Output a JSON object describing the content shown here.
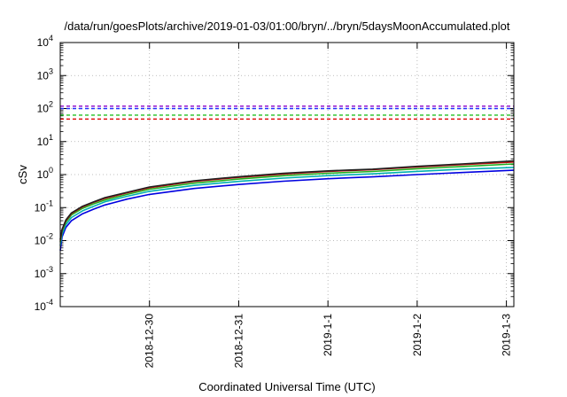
{
  "chart_data": {
    "type": "line",
    "title": "/data/run/goesPlots/archive/2019-01-03/01:00/bryn/../bryn/5daysMoonAccumulated.plot",
    "xlabel": "Coordinated Universal Time (UTC)",
    "ylabel": "cSv",
    "y_scale": "log",
    "ylim": [
      0.0001,
      10000
    ],
    "xlim": [
      "2018-12-29T00:00",
      "2019-01-03T02:00"
    ],
    "grid": true,
    "x_ticks": [
      {
        "value": "2018-12-30T00:00",
        "label": "2018-12-30"
      },
      {
        "value": "2018-12-31T00:00",
        "label": "2018-12-31"
      },
      {
        "value": "2019-01-01T00:00",
        "label": "2019-1-1"
      },
      {
        "value": "2019-01-02T00:00",
        "label": "2019-1-2"
      },
      {
        "value": "2019-01-03T00:00",
        "label": "2019-1-3"
      }
    ],
    "y_ticks": [
      {
        "value": 0.0001,
        "base": "10",
        "exp": "-4"
      },
      {
        "value": 0.001,
        "base": "10",
        "exp": "-3"
      },
      {
        "value": 0.01,
        "base": "10",
        "exp": "-2"
      },
      {
        "value": 0.1,
        "base": "10",
        "exp": "-1"
      },
      {
        "value": 1,
        "base": "10",
        "exp": "0"
      },
      {
        "value": 10,
        "base": "10",
        "exp": "1"
      },
      {
        "value": 100,
        "base": "10",
        "exp": "2"
      },
      {
        "value": 1000,
        "base": "10",
        "exp": "3"
      },
      {
        "value": 10000,
        "base": "10",
        "exp": "4"
      }
    ],
    "thresholds": [
      {
        "value": 118,
        "color": "#8b00c8",
        "style": "dashed"
      },
      {
        "value": 100,
        "color": "#2030ff",
        "style": "dashed"
      },
      {
        "value": 63,
        "color": "#20c020",
        "style": "dashed"
      },
      {
        "value": 48,
        "color": "#e01010",
        "style": "dashed"
      }
    ],
    "series": [
      {
        "color": "#0000e0",
        "x": [
          "2018-12-29T00:00",
          "2018-12-29T00:30",
          "2018-12-29T01:30",
          "2018-12-29T03:00",
          "2018-12-29T06:00",
          "2018-12-29T09:00",
          "2018-12-29T12:00",
          "2018-12-29T18:00",
          "2018-12-30T00:00",
          "2018-12-30T12:00",
          "2018-12-31T00:00",
          "2018-12-31T12:00",
          "2019-01-01T00:00",
          "2019-01-01T06:00",
          "2019-01-01T12:00",
          "2019-01-02T00:00",
          "2019-01-02T12:00",
          "2019-01-03T02:00"
        ],
        "values": [
          0.005,
          0.013,
          0.025,
          0.04,
          0.065,
          0.09,
          0.12,
          0.18,
          0.25,
          0.38,
          0.5,
          0.63,
          0.75,
          0.8,
          0.85,
          1.0,
          1.15,
          1.35
        ]
      },
      {
        "color": "#00b0b0",
        "x": [
          "2018-12-29T00:00",
          "2018-12-29T00:30",
          "2018-12-29T01:30",
          "2018-12-29T03:00",
          "2018-12-29T06:00",
          "2018-12-29T09:00",
          "2018-12-29T12:00",
          "2018-12-29T18:00",
          "2018-12-30T00:00",
          "2018-12-30T12:00",
          "2018-12-31T00:00",
          "2018-12-31T12:00",
          "2019-01-01T00:00",
          "2019-01-01T06:00",
          "2019-01-01T12:00",
          "2019-01-02T00:00",
          "2019-01-02T12:00",
          "2019-01-03T02:00"
        ],
        "values": [
          0.007,
          0.016,
          0.03,
          0.05,
          0.08,
          0.11,
          0.15,
          0.22,
          0.31,
          0.47,
          0.62,
          0.78,
          0.93,
          0.99,
          1.05,
          1.25,
          1.45,
          1.65
        ]
      },
      {
        "color": "#20b020",
        "x": [
          "2018-12-29T00:00",
          "2018-12-29T00:30",
          "2018-12-29T01:30",
          "2018-12-29T03:00",
          "2018-12-29T06:00",
          "2018-12-29T09:00",
          "2018-12-29T12:00",
          "2018-12-29T18:00",
          "2018-12-30T00:00",
          "2018-12-30T12:00",
          "2018-12-31T00:00",
          "2018-12-31T12:00",
          "2019-01-01T00:00",
          "2019-01-01T06:00",
          "2019-01-01T12:00",
          "2019-01-02T00:00",
          "2019-01-02T12:00",
          "2019-01-03T02:00"
        ],
        "values": [
          0.009,
          0.019,
          0.036,
          0.06,
          0.095,
          0.13,
          0.17,
          0.25,
          0.36,
          0.55,
          0.73,
          0.92,
          1.1,
          1.17,
          1.24,
          1.5,
          1.75,
          2.1
        ]
      },
      {
        "color": "#c01010",
        "x": [
          "2018-12-29T00:00",
          "2018-12-29T00:30",
          "2018-12-29T01:30",
          "2018-12-29T03:00",
          "2018-12-29T06:00",
          "2018-12-29T09:00",
          "2018-12-29T12:00",
          "2018-12-29T18:00",
          "2018-12-30T00:00",
          "2018-12-30T12:00",
          "2018-12-31T00:00",
          "2018-12-31T12:00",
          "2019-01-01T00:00",
          "2019-01-01T06:00",
          "2019-01-01T12:00",
          "2019-01-02T00:00",
          "2019-01-02T12:00",
          "2019-01-03T02:00"
        ],
        "values": [
          0.01,
          0.021,
          0.04,
          0.066,
          0.105,
          0.145,
          0.19,
          0.28,
          0.4,
          0.62,
          0.82,
          1.04,
          1.25,
          1.33,
          1.41,
          1.7,
          2.0,
          2.4
        ]
      },
      {
        "color": "#202020",
        "x": [
          "2018-12-29T00:00",
          "2018-12-29T00:30",
          "2018-12-29T01:30",
          "2018-12-29T03:00",
          "2018-12-29T06:00",
          "2018-12-29T09:00",
          "2018-12-29T12:00",
          "2018-12-29T18:00",
          "2018-12-30T00:00",
          "2018-12-30T12:00",
          "2018-12-31T00:00",
          "2018-12-31T12:00",
          "2019-01-01T00:00",
          "2019-01-01T06:00",
          "2019-01-01T12:00",
          "2019-01-02T00:00",
          "2019-01-02T12:00",
          "2019-01-03T02:00"
        ],
        "values": [
          0.011,
          0.022,
          0.042,
          0.069,
          0.11,
          0.15,
          0.2,
          0.29,
          0.42,
          0.65,
          0.86,
          1.09,
          1.3,
          1.38,
          1.46,
          1.78,
          2.1,
          2.6
        ]
      }
    ]
  }
}
